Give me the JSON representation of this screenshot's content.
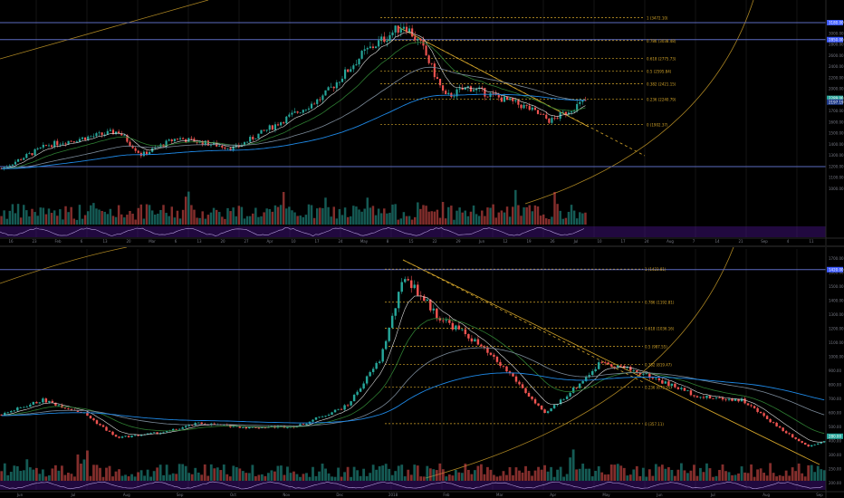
{
  "colors": {
    "up": "#26a69a",
    "down": "#ef5350",
    "fib": "#d4a52a",
    "blue_line": "#3d5afe",
    "level_line": "#5c6bc0",
    "axis_text": "#787b86",
    "grid": "#141414",
    "osc_fill": "#4a148c",
    "ema_fast": "#e0e0e0",
    "ema_mid": "#2e7d32",
    "ema_slow": "#7b8a99",
    "ema_long": "#1e88e5"
  },
  "panels": [
    {
      "id": "top",
      "x_labels": [
        "16",
        "23",
        "Feb",
        "6",
        "13",
        "20",
        "Mar",
        "6",
        "13",
        "20",
        "27",
        "Apr",
        "10",
        "17",
        "24",
        "May",
        "8",
        "15",
        "22",
        "29",
        "Jun",
        "12",
        "19",
        "26",
        "Jul",
        "10",
        "17",
        "24",
        "Aug",
        "7",
        "14",
        "21",
        "Sep",
        "4",
        "11"
      ],
      "y_labels": [
        "3200.00",
        "3000.00",
        "2800.00",
        "2600.00",
        "2400.00",
        "2200.00",
        "2000.00",
        "1800.00",
        "1700.00",
        "1600.00",
        "1500.00",
        "1400.00",
        "1300.00",
        "1200.00",
        "1100.00",
        "1000.00"
      ],
      "price_badges": [
        "3180.00",
        "2850.00",
        "2289.00",
        "2197.19"
      ],
      "fib_levels": [
        {
          "label": "1 (3472.10)"
        },
        {
          "label": "0.786 (3038.48)"
        },
        {
          "label": "0.618 (2775.73)"
        },
        {
          "label": "0.5 (2595.84)"
        },
        {
          "label": "0.382 (2421.15)"
        },
        {
          "label": "0.236 (2240.79)"
        },
        {
          "label": "0 (1902.37)"
        }
      ]
    },
    {
      "id": "bottom",
      "x_labels": [
        "Jun",
        "Jul",
        "Aug",
        "Sep",
        "Oct",
        "Nov",
        "Dec",
        "2018",
        "Feb",
        "Mar",
        "Apr",
        "May",
        "Jun",
        "Jul",
        "Aug",
        "Sep"
      ],
      "y_labels": [
        "1700.00",
        "1600.00",
        "1500.00",
        "1400.00",
        "1300.00",
        "1200.00",
        "1100.00",
        "1000.00",
        "900.00",
        "800.00",
        "700.00",
        "600.00",
        "500.00",
        "400.00",
        "300.00",
        "250.00",
        "200.00"
      ],
      "price_badges": [
        "1420.00",
        "280.00"
      ],
      "fib_levels": [
        {
          "label": "1 (1423.81)"
        },
        {
          "label": "0.786 (1192.81)"
        },
        {
          "label": "0.618 (1036.16)"
        },
        {
          "label": "0.5 (987.55)"
        },
        {
          "label": "0.382 (819.47)"
        },
        {
          "label": "0.236 (673.95)"
        },
        {
          "label": "0 (357.11)"
        }
      ]
    }
  ],
  "chart_data": [
    {
      "type": "candlestick",
      "title": "",
      "fib_retracement": {
        "high": 3472.1,
        "low": 1902.37,
        "levels": [
          1,
          0.786,
          0.618,
          0.5,
          0.382,
          0.236,
          0
        ]
      },
      "horizontal_levels": [
        3180,
        2850,
        2289,
        1220
      ],
      "trend_shape": "rally from ~1200 to ~3400 peak in May, then pullback toward ~1950 and rebound to ~2290"
    },
    {
      "type": "candlestick",
      "title": "",
      "fib_retracement": {
        "high": 1423.81,
        "low": 357.11,
        "levels": [
          1,
          0.786,
          0.618,
          0.5,
          0.382,
          0.236,
          0
        ]
      },
      "horizontal_levels": [
        1420
      ],
      "trend_shape": "rally from ~300 to ~1420 peak in Jan 2018, decline to ~400, rebound to ~800, then decline to ~200"
    }
  ]
}
